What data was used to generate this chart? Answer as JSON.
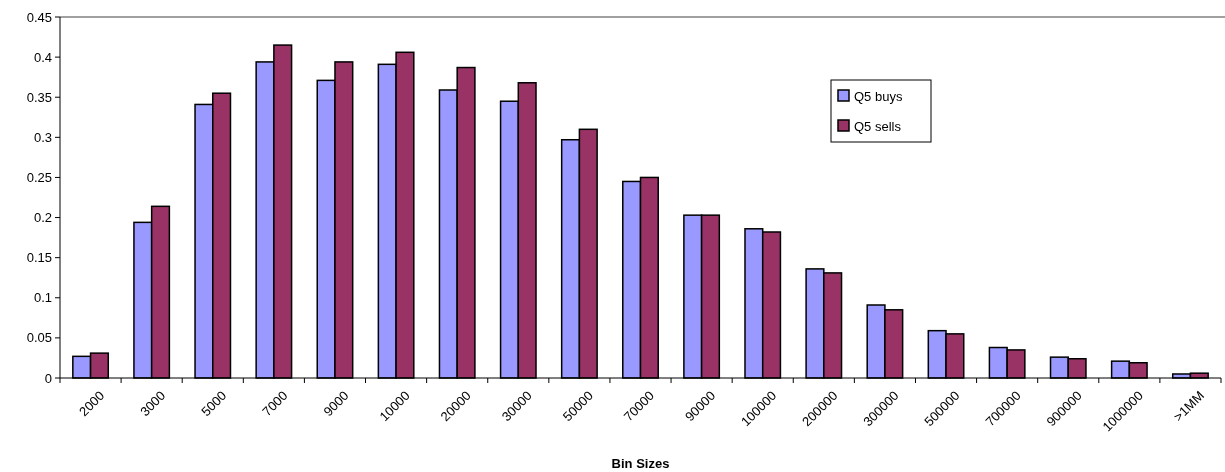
{
  "chart_data": {
    "type": "bar",
    "xlabel": "Bin Sizes",
    "categories": [
      "2000",
      "3000",
      "5000",
      "7000",
      "9000",
      "10000",
      "20000",
      "30000",
      "50000",
      "70000",
      "90000",
      "100000",
      "200000",
      "300000",
      "500000",
      "700000",
      "900000",
      "1000000",
      ">1MM"
    ],
    "series": [
      {
        "name": "Q5 buys",
        "color": "#9999ff",
        "values": [
          0.027,
          0.194,
          0.341,
          0.394,
          0.371,
          0.391,
          0.359,
          0.345,
          0.297,
          0.245,
          0.203,
          0.186,
          0.136,
          0.091,
          0.059,
          0.038,
          0.026,
          0.021,
          0.005
        ]
      },
      {
        "name": "Q5 sells",
        "color": "#993366",
        "values": [
          0.031,
          0.214,
          0.355,
          0.415,
          0.394,
          0.406,
          0.387,
          0.368,
          0.31,
          0.25,
          0.203,
          0.182,
          0.131,
          0.085,
          0.055,
          0.035,
          0.024,
          0.019,
          0.006
        ]
      }
    ],
    "ylim": [
      0,
      0.45
    ],
    "yticks": [
      0,
      0.05,
      0.1,
      0.15,
      0.2,
      0.25,
      0.3,
      0.35,
      0.4,
      0.45
    ],
    "grid": false,
    "legend": "top right"
  }
}
